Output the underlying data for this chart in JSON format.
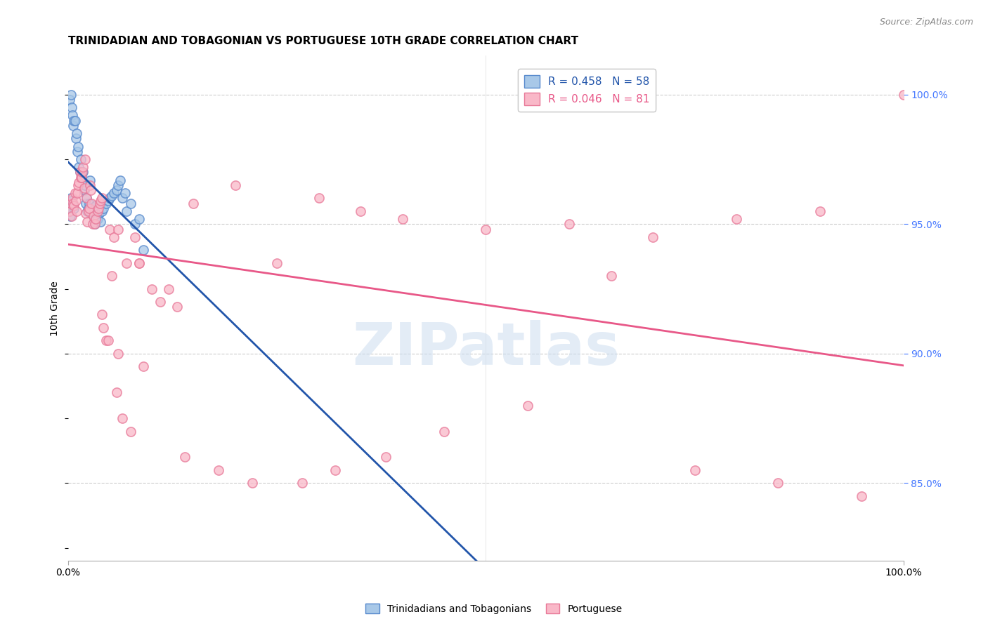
{
  "title": "TRINIDADIAN AND TOBAGONIAN VS PORTUGUESE 10TH GRADE CORRELATION CHART",
  "source": "Source: ZipAtlas.com",
  "ylabel": "10th Grade",
  "legend_label1": "Trinidadians and Tobagonians",
  "legend_label2": "Portuguese",
  "blue_color": "#a8c8e8",
  "pink_color": "#f9b8c8",
  "blue_edge_color": "#5588cc",
  "pink_edge_color": "#e87898",
  "blue_line_color": "#2255aa",
  "pink_line_color": "#e85888",
  "right_tick_color": "#4477ff",
  "R1": 0.458,
  "N1": 58,
  "R2": 0.046,
  "N2": 81,
  "xmin": 0.0,
  "xmax": 100.0,
  "ymin": 82.0,
  "ymax": 101.5,
  "right_yticks": [
    85.0,
    90.0,
    95.0,
    100.0
  ],
  "blue_x": [
    0.2,
    0.3,
    0.4,
    0.5,
    0.6,
    0.7,
    0.8,
    0.9,
    1.0,
    1.1,
    1.2,
    1.3,
    1.4,
    1.5,
    1.6,
    1.7,
    1.8,
    1.9,
    2.0,
    2.1,
    2.2,
    2.3,
    2.4,
    2.5,
    2.6,
    2.7,
    2.8,
    3.0,
    3.1,
    3.2,
    3.3,
    3.4,
    3.5,
    3.7,
    3.9,
    4.0,
    4.2,
    4.5,
    4.8,
    5.0,
    5.2,
    5.5,
    5.8,
    6.0,
    6.2,
    6.5,
    6.8,
    7.0,
    7.5,
    8.0,
    8.5,
    9.0,
    0.15,
    0.25,
    0.35,
    0.45,
    0.55,
    0.65
  ],
  "blue_y": [
    99.8,
    100.0,
    99.5,
    99.2,
    98.8,
    99.0,
    99.0,
    98.3,
    98.5,
    97.8,
    98.0,
    97.2,
    97.0,
    97.5,
    96.8,
    97.0,
    97.0,
    96.3,
    96.5,
    95.8,
    96.0,
    95.5,
    95.6,
    95.8,
    96.7,
    95.4,
    95.5,
    95.3,
    95.1,
    95.0,
    95.7,
    95.2,
    95.2,
    95.4,
    95.1,
    95.5,
    95.6,
    95.8,
    95.9,
    96.0,
    96.1,
    96.2,
    96.3,
    96.5,
    96.7,
    96.0,
    96.2,
    95.5,
    95.8,
    95.0,
    95.2,
    94.0,
    95.5,
    95.3,
    96.0,
    95.9,
    95.7,
    95.6
  ],
  "pink_x": [
    0.2,
    0.3,
    0.4,
    0.5,
    0.6,
    0.7,
    0.8,
    0.9,
    1.0,
    1.1,
    1.2,
    1.3,
    1.4,
    1.5,
    1.6,
    1.7,
    1.8,
    1.9,
    2.0,
    2.1,
    2.2,
    2.3,
    2.4,
    2.5,
    2.6,
    2.7,
    2.8,
    2.9,
    3.0,
    3.2,
    3.3,
    3.5,
    3.6,
    3.8,
    3.9,
    4.0,
    4.2,
    4.5,
    4.8,
    5.0,
    5.2,
    5.5,
    5.8,
    6.0,
    6.5,
    7.0,
    7.5,
    8.0,
    8.5,
    9.0,
    10.0,
    11.0,
    13.0,
    14.0,
    18.0,
    22.0,
    25.0,
    28.0,
    30.0,
    32.0,
    35.0,
    38.0,
    40.0,
    45.0,
    50.0,
    55.0,
    60.0,
    65.0,
    70.0,
    75.0,
    80.0,
    85.0,
    90.0,
    95.0,
    100.0,
    12.0,
    15.0,
    20.0,
    4.0,
    6.0,
    8.5
  ],
  "pink_y": [
    95.5,
    95.8,
    95.3,
    96.0,
    95.8,
    95.7,
    96.2,
    95.9,
    95.5,
    96.2,
    96.5,
    96.6,
    97.0,
    96.8,
    96.8,
    97.0,
    97.2,
    96.4,
    97.5,
    95.4,
    96.0,
    95.1,
    95.5,
    95.6,
    96.5,
    96.3,
    95.8,
    95.0,
    95.3,
    95.0,
    95.2,
    95.5,
    95.6,
    95.8,
    95.9,
    96.0,
    91.0,
    90.5,
    90.5,
    94.8,
    93.0,
    94.5,
    88.5,
    94.8,
    87.5,
    93.5,
    87.0,
    94.5,
    93.5,
    89.5,
    92.5,
    92.0,
    91.8,
    86.0,
    85.5,
    85.0,
    93.5,
    85.0,
    96.0,
    85.5,
    95.5,
    86.0,
    95.2,
    87.0,
    94.8,
    88.0,
    95.0,
    93.0,
    94.5,
    85.5,
    95.2,
    85.0,
    95.5,
    84.5,
    100.0,
    92.5,
    95.8,
    96.5,
    91.5,
    90.0,
    93.5
  ]
}
